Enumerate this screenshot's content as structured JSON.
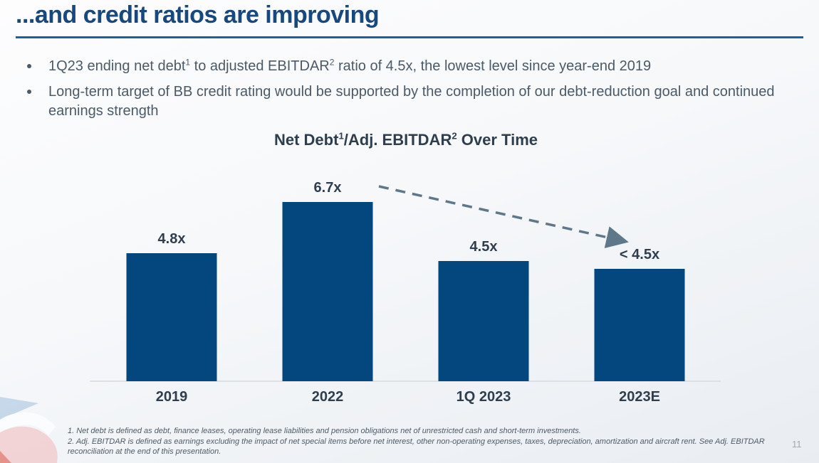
{
  "slide": {
    "title": "...and credit ratios are improving",
    "page_number": "11"
  },
  "bullets": [
    {
      "parts": [
        "1Q23 ending net debt",
        "1",
        " to adjusted EBITDAR",
        "2",
        " ratio of 4.5x, the lowest level since year-end 2019"
      ]
    },
    {
      "parts": [
        "Long-term target of BB credit rating would be supported by the completion of our debt-reduction goal and continued earnings strength"
      ]
    }
  ],
  "chart_data": {
    "type": "bar",
    "title_parts": [
      "Net Debt",
      "1",
      "/Adj. EBITDAR",
      "2",
      " Over Time"
    ],
    "categories": [
      "2019",
      "2022",
      "1Q 2023",
      "2023E"
    ],
    "values": [
      4.8,
      6.7,
      4.5,
      4.2
    ],
    "labels": [
      "4.8x",
      "6.7x",
      "4.5x",
      "< 4.5x"
    ],
    "ylim": [
      0,
      7.75
    ],
    "grid": false,
    "legend": false,
    "bar_color": "#04477e",
    "annotation": {
      "type": "dashed-arrow",
      "from_label": "6.7x",
      "to_label": "< 4.5x",
      "color": "#5f7889"
    }
  },
  "footnotes": [
    "1.  Net debt is defined as debt, finance leases, operating lease liabilities and pension obligations net of unrestricted cash and short-term investments.",
    "2. Adj. EBITDAR is defined as earnings excluding the impact of net special items before net interest, other non-operating expenses, taxes, depreciation, amortization and aircraft rent. See Adj. EBITDAR reconciliation at the end of this presentation."
  ],
  "colors": {
    "title": "#17497e",
    "underline": "#1e5ea7",
    "body_text": "#4b5a66",
    "bar": "#04477e",
    "chart_text": "#2f3e4c",
    "arrow": "#5f7889",
    "page_number": "#a0a8b0"
  }
}
